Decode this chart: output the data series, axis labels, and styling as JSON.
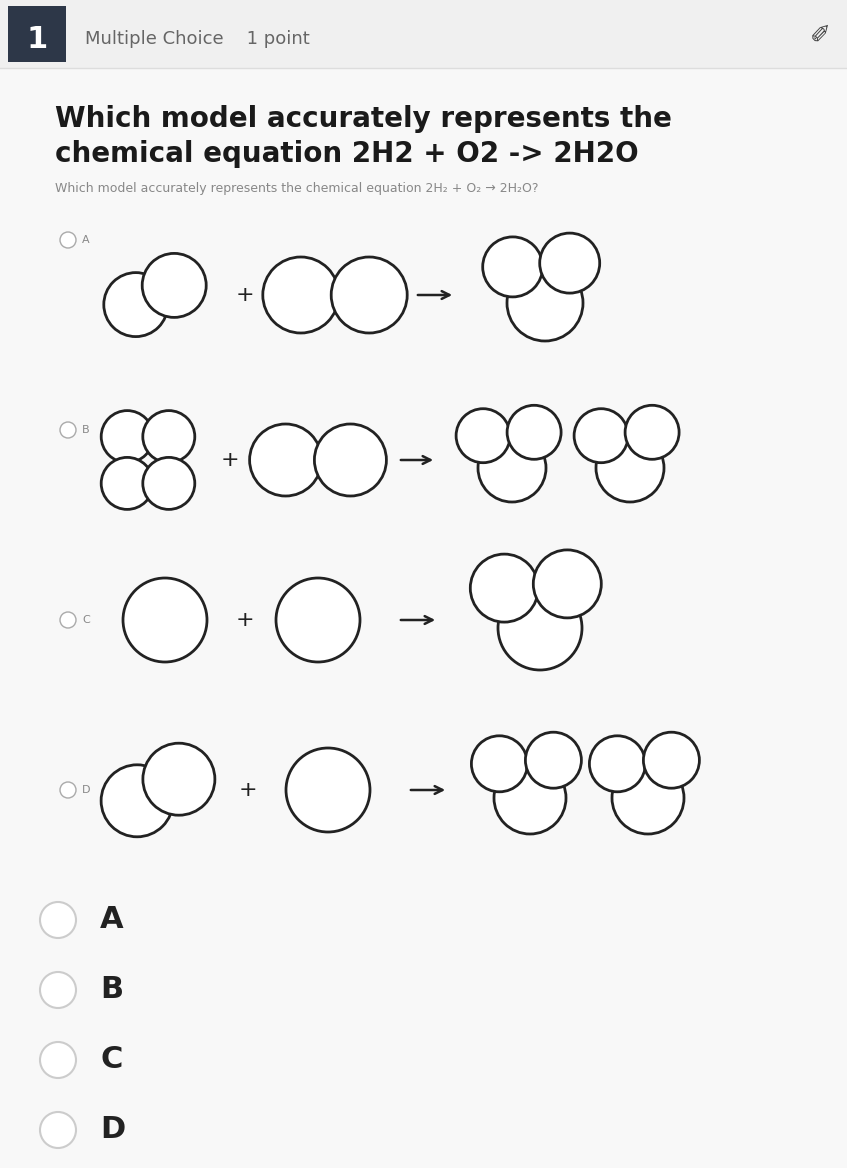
{
  "title_bold_line1": "Which model accurately represents the",
  "title_bold_line2": "chemical equation 2H2 + O2 -> 2H2O",
  "title_sub": "Which model accurately represents the chemical equation 2H₂ + O₂ → 2H₂O?",
  "header_label": "1",
  "header_text": "Multiple Choice    1 point",
  "bg_color": "#f8f8f8",
  "header_bg": "#2d3748",
  "header_bar_bg": "#f0f0f0",
  "circle_lw": 2.0,
  "circle_color": "#222222",
  "answer_labels": [
    "A",
    "B",
    "C",
    "D"
  ]
}
